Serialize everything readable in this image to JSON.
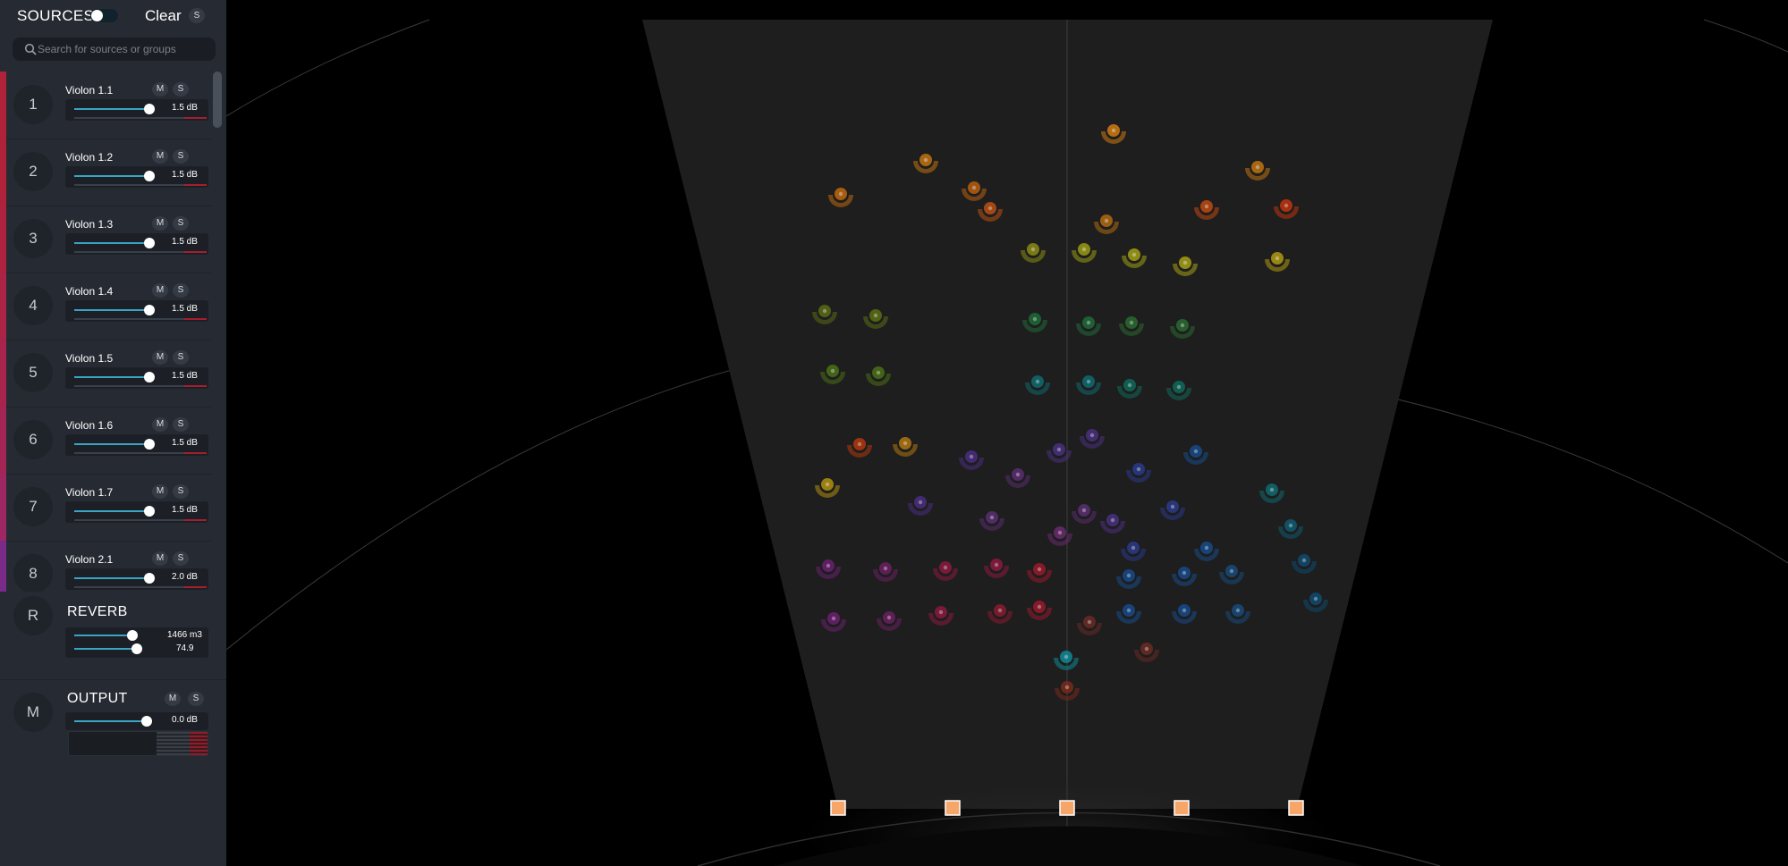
{
  "header": {
    "title": "SOURCES",
    "clear_label": "Clear",
    "solo_label": "S"
  },
  "search": {
    "placeholder": "Search for sources or groups",
    "value": ""
  },
  "sources": [
    {
      "number": "1",
      "name": "Violon 1.1",
      "mute": "M",
      "solo": "S",
      "gain": "1.5 dB",
      "color": "#b0223a"
    },
    {
      "number": "2",
      "name": "Violon 1.2",
      "mute": "M",
      "solo": "S",
      "gain": "1.5 dB",
      "color": "#b0223a"
    },
    {
      "number": "3",
      "name": "Violon 1.3",
      "mute": "M",
      "solo": "S",
      "gain": "1.5 dB",
      "color": "#ae2240"
    },
    {
      "number": "4",
      "name": "Violon 1.4",
      "mute": "M",
      "solo": "S",
      "gain": "1.5 dB",
      "color": "#ab2345"
    },
    {
      "number": "5",
      "name": "Violon 1.5",
      "mute": "M",
      "solo": "S",
      "gain": "1.5 dB",
      "color": "#a8244c"
    },
    {
      "number": "6",
      "name": "Violon 1.6",
      "mute": "M",
      "solo": "S",
      "gain": "1.5 dB",
      "color": "#a32556"
    },
    {
      "number": "7",
      "name": "Violon 1.7",
      "mute": "M",
      "solo": "S",
      "gain": "1.5 dB",
      "color": "#9c2762"
    },
    {
      "number": "8",
      "name": "Violon 2.1",
      "mute": "M",
      "solo": "S",
      "gain": "2.0 dB",
      "color": "#7a2a88"
    }
  ],
  "reverb": {
    "badge": "R",
    "label": "REVERB",
    "room_size": "1466 m3",
    "amount": "74.9"
  },
  "output": {
    "badge": "M",
    "label": "OUTPUT",
    "mute": "M",
    "solo": "S",
    "gain": "0.0 dB"
  },
  "scene": {
    "speaker_count": 5,
    "speaker_color": "#f7a66a",
    "icon_names": [
      "search-icon",
      "source-marker-icon",
      "speaker-icon"
    ]
  }
}
